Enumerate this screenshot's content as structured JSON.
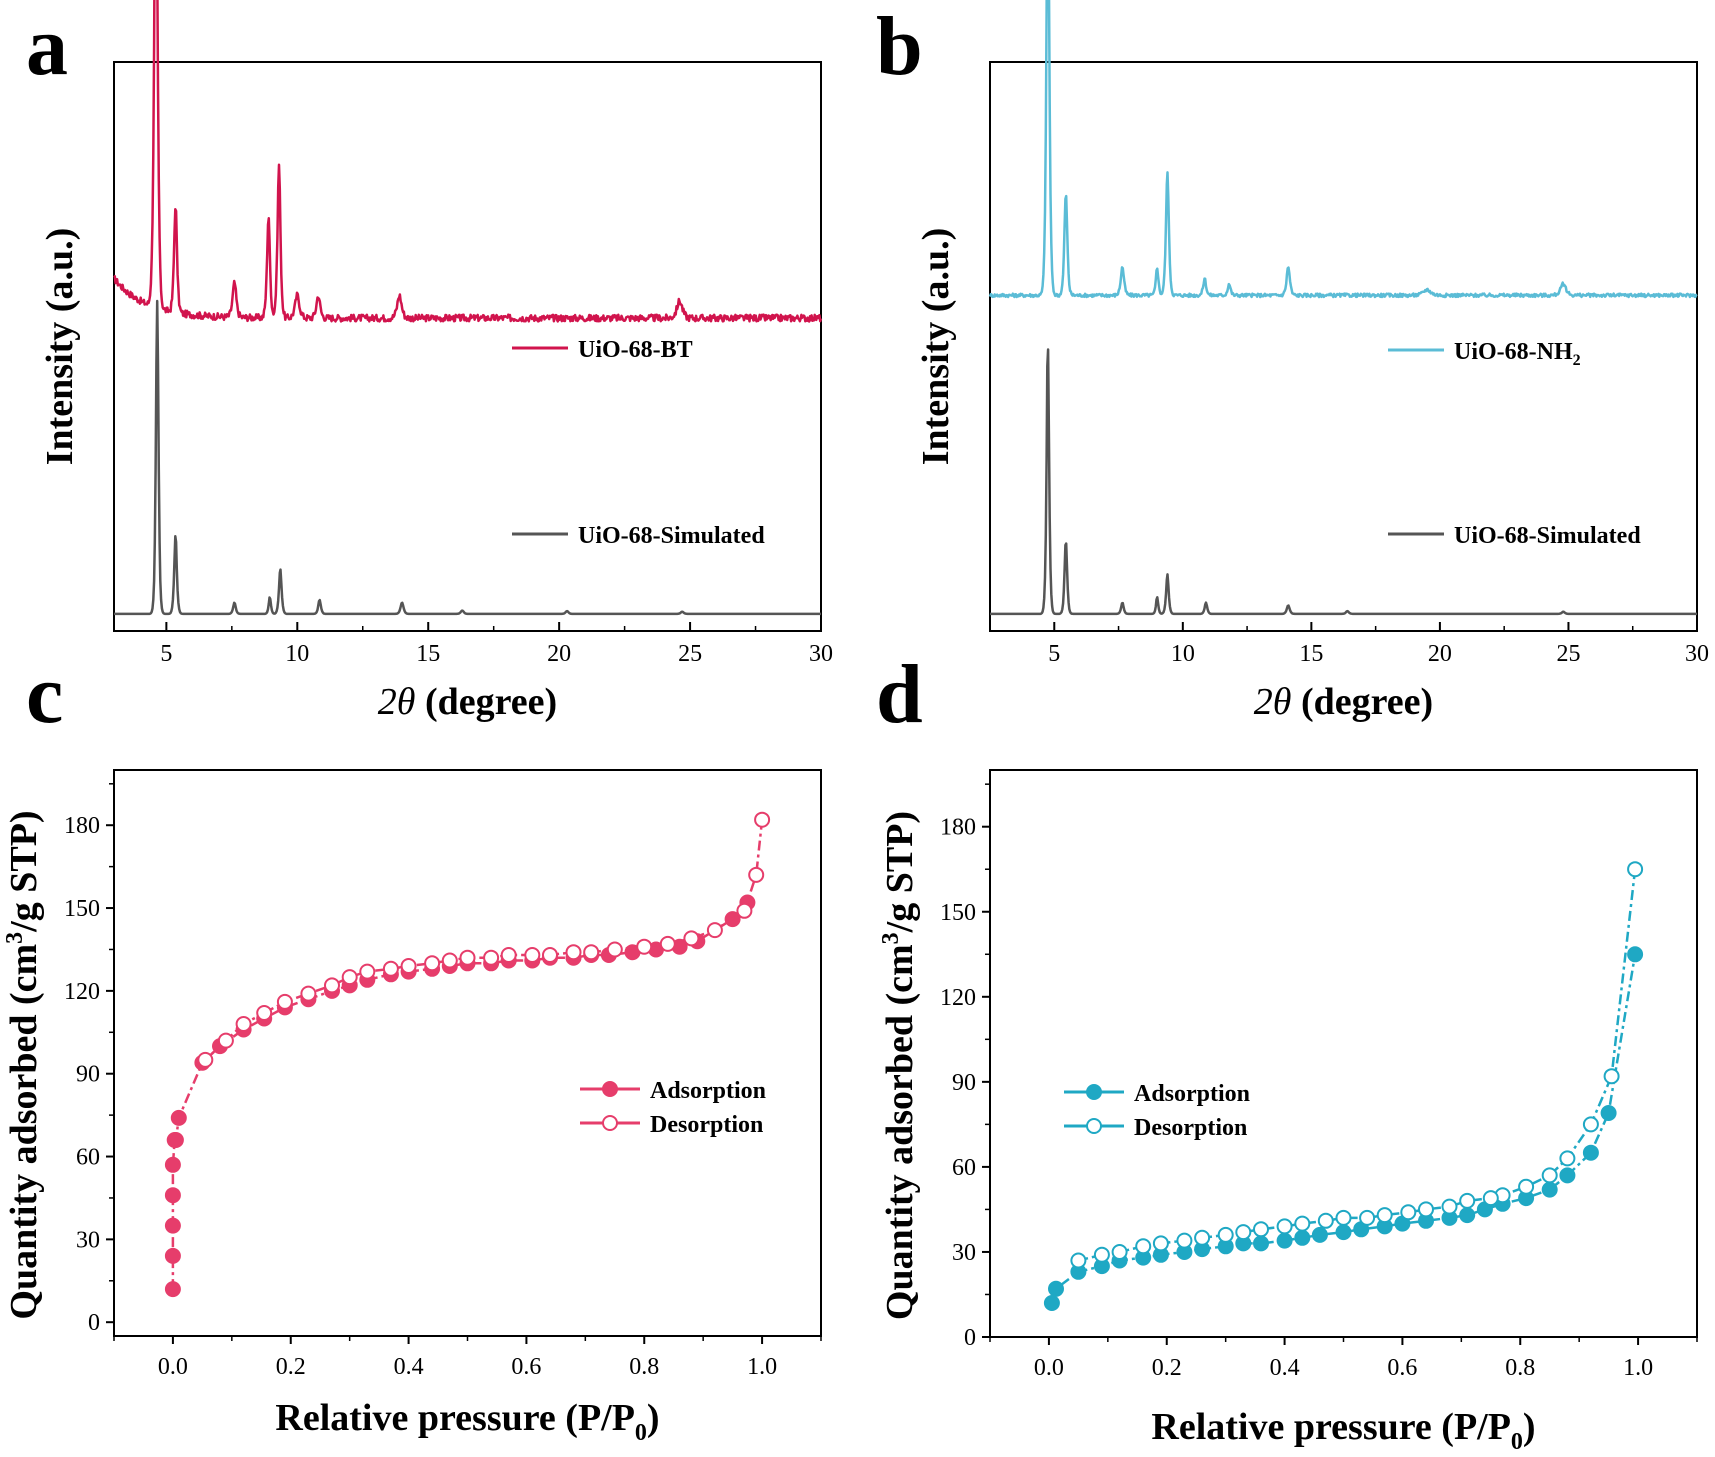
{
  "chart_data": [
    {
      "panel": "a",
      "type": "line",
      "xlabel": "2θ (degree)",
      "xlabel_parts": {
        "symbol": "2θ",
        "unit": "(degree)"
      },
      "ylabel": "Intensity (a.u.)",
      "xlim": [
        3,
        30
      ],
      "xticks": [
        5,
        10,
        15,
        20,
        25,
        30
      ],
      "yticks": [],
      "legend_position": "inline-right",
      "series": [
        {
          "name": "UiO-68-BT",
          "color": "#d1144d",
          "baseline": 0.55,
          "noise": 0.006,
          "start_level": 0.62,
          "peaks": [
            [
              4.6,
              0.88,
              0.09
            ],
            [
              5.35,
              0.19,
              0.08
            ],
            [
              7.6,
              0.06,
              0.1
            ],
            [
              8.9,
              0.18,
              0.08
            ],
            [
              9.3,
              0.27,
              0.08
            ],
            [
              10.0,
              0.04,
              0.12
            ],
            [
              10.8,
              0.04,
              0.1
            ],
            [
              13.9,
              0.04,
              0.12
            ],
            [
              24.6,
              0.03,
              0.15
            ]
          ]
        },
        {
          "name": "UiO-68-Simulated",
          "color": "#555555",
          "baseline": 0.03,
          "noise": 0.0,
          "start_level": 0.03,
          "peaks": [
            [
              4.65,
              0.55,
              0.07
            ],
            [
              5.35,
              0.14,
              0.07
            ],
            [
              7.6,
              0.02,
              0.07
            ],
            [
              8.95,
              0.03,
              0.06
            ],
            [
              9.35,
              0.08,
              0.07
            ],
            [
              10.85,
              0.025,
              0.07
            ],
            [
              14.0,
              0.02,
              0.08
            ],
            [
              16.3,
              0.006,
              0.08
            ],
            [
              20.3,
              0.005,
              0.08
            ],
            [
              24.7,
              0.004,
              0.08
            ]
          ]
        }
      ]
    },
    {
      "panel": "b",
      "type": "line",
      "xlabel": "2θ (degree)",
      "xlabel_parts": {
        "symbol": "2θ",
        "unit": "(degree)"
      },
      "ylabel": "Intensity (a.u.)",
      "xlim": [
        2.5,
        30
      ],
      "xticks": [
        5,
        10,
        15,
        20,
        25,
        30
      ],
      "yticks": [],
      "legend_position": "inline-right",
      "series": [
        {
          "name": "UiO-68-NH₂",
          "name_parts": {
            "base": "UiO-68-NH",
            "sub": "2"
          },
          "color": "#5bbcd6",
          "baseline": 0.59,
          "noise": 0.003,
          "start_level": 0.59,
          "peaks": [
            [
              4.75,
              0.78,
              0.08
            ],
            [
              5.45,
              0.18,
              0.08
            ],
            [
              7.65,
              0.05,
              0.09
            ],
            [
              9.0,
              0.05,
              0.07
            ],
            [
              9.4,
              0.22,
              0.08
            ],
            [
              10.85,
              0.03,
              0.08
            ],
            [
              11.8,
              0.02,
              0.08
            ],
            [
              14.1,
              0.05,
              0.09
            ],
            [
              19.5,
              0.01,
              0.2
            ],
            [
              24.8,
              0.02,
              0.15
            ]
          ]
        },
        {
          "name": "UiO-68-Simulated",
          "color": "#555555",
          "baseline": 0.03,
          "noise": 0.0,
          "start_level": 0.03,
          "peaks": [
            [
              4.75,
              0.48,
              0.07
            ],
            [
              5.45,
              0.13,
              0.07
            ],
            [
              7.65,
              0.02,
              0.07
            ],
            [
              9.0,
              0.03,
              0.06
            ],
            [
              9.4,
              0.07,
              0.07
            ],
            [
              10.9,
              0.02,
              0.07
            ],
            [
              14.1,
              0.015,
              0.08
            ],
            [
              16.4,
              0.005,
              0.08
            ],
            [
              24.8,
              0.004,
              0.08
            ]
          ]
        }
      ]
    },
    {
      "panel": "c",
      "type": "scatter",
      "xlabel": "Relative pressure (P/P0)",
      "xlabel_parts": {
        "base": "Relative pressure (P/P",
        "sub": "0",
        "end": ")"
      },
      "ylabel": "Quantity adsorbed (cm3/g STP)",
      "ylabel_parts": {
        "base": "Quantity adsorbed (cm",
        "sup": "3",
        "end": "/g STP)"
      },
      "xlim": [
        -0.1,
        1.1
      ],
      "ylim": [
        -5,
        200
      ],
      "xticks": [
        0.0,
        0.2,
        0.4,
        0.6,
        0.8,
        1.0
      ],
      "xtick_labels": [
        "0.0",
        "0.2",
        "0.4",
        "0.6",
        "0.8",
        "1.0"
      ],
      "yticks": [
        0,
        30,
        60,
        90,
        120,
        150,
        180
      ],
      "legend_position": "center-right",
      "color": "#e63d6b",
      "series": [
        {
          "name": "Adsorption",
          "marker": "filled",
          "x": [
            0.0,
            0.0,
            0.0,
            0.0,
            0.0,
            0.003,
            0.005,
            0.01,
            0.05,
            0.08,
            0.12,
            0.155,
            0.19,
            0.23,
            0.27,
            0.3,
            0.33,
            0.37,
            0.4,
            0.44,
            0.47,
            0.5,
            0.54,
            0.57,
            0.61,
            0.64,
            0.68,
            0.71,
            0.74,
            0.78,
            0.82,
            0.86,
            0.89,
            0.95,
            0.975
          ],
          "y": [
            12,
            24,
            35,
            46,
            57,
            66,
            66,
            74,
            94,
            100,
            106,
            110,
            114,
            117,
            120,
            122,
            124,
            126,
            127,
            128,
            129,
            130,
            130,
            131,
            131,
            132,
            132,
            133,
            133,
            134,
            135,
            136,
            138,
            146,
            152
          ]
        },
        {
          "name": "Desorption",
          "marker": "open",
          "x": [
            1.0,
            0.99,
            0.97,
            0.92,
            0.88,
            0.84,
            0.8,
            0.75,
            0.71,
            0.68,
            0.64,
            0.61,
            0.57,
            0.54,
            0.5,
            0.47,
            0.44,
            0.4,
            0.37,
            0.33,
            0.3,
            0.27,
            0.23,
            0.19,
            0.155,
            0.12,
            0.09,
            0.055
          ],
          "y": [
            182,
            162,
            149,
            142,
            139,
            137,
            136,
            135,
            134,
            134,
            133,
            133,
            133,
            132,
            132,
            131,
            130,
            129,
            128,
            127,
            125,
            122,
            119,
            116,
            112,
            108,
            102,
            95
          ]
        }
      ]
    },
    {
      "panel": "d",
      "type": "scatter",
      "xlabel": "Relative pressure (P/P0)",
      "xlabel_parts": {
        "base": "Relative pressure (P/P",
        "sub": "0",
        "end": ")"
      },
      "ylabel": "Quantity adsorbed (cm3/g STP)",
      "ylabel_parts": {
        "base": "Quantity adsorbed (cm",
        "sup": "3",
        "end": "/g STP)"
      },
      "xlim": [
        -0.1,
        1.1
      ],
      "ylim": [
        0,
        200
      ],
      "xticks": [
        0.0,
        0.2,
        0.4,
        0.6,
        0.8,
        1.0
      ],
      "xtick_labels": [
        "0.0",
        "0.2",
        "0.4",
        "0.6",
        "0.8",
        "1.0"
      ],
      "yticks": [
        0,
        30,
        60,
        90,
        120,
        150,
        180
      ],
      "legend_position": "center-left",
      "color": "#1fa8c4",
      "series": [
        {
          "name": "Adsorption",
          "marker": "filled",
          "x": [
            0.005,
            0.012,
            0.05,
            0.09,
            0.12,
            0.16,
            0.19,
            0.23,
            0.26,
            0.3,
            0.33,
            0.36,
            0.4,
            0.43,
            0.46,
            0.5,
            0.53,
            0.57,
            0.6,
            0.64,
            0.68,
            0.71,
            0.74,
            0.77,
            0.81,
            0.85,
            0.88,
            0.92,
            0.95,
            0.995
          ],
          "y": [
            12,
            17,
            23,
            25,
            27,
            28,
            29,
            30,
            31,
            32,
            33,
            33,
            34,
            35,
            36,
            37,
            38,
            39,
            40,
            41,
            42,
            43,
            45,
            47,
            49,
            52,
            57,
            65,
            79,
            135
          ]
        },
        {
          "name": "Desorption",
          "marker": "open",
          "x": [
            0.995,
            0.955,
            0.92,
            0.88,
            0.85,
            0.81,
            0.77,
            0.75,
            0.71,
            0.68,
            0.64,
            0.61,
            0.57,
            0.54,
            0.5,
            0.47,
            0.43,
            0.4,
            0.36,
            0.33,
            0.3,
            0.26,
            0.23,
            0.19,
            0.16,
            0.12,
            0.09,
            0.05
          ],
          "y": [
            165,
            92,
            75,
            63,
            57,
            53,
            50,
            49,
            48,
            46,
            45,
            44,
            43,
            42,
            42,
            41,
            40,
            39,
            38,
            37,
            36,
            35,
            34,
            33,
            32,
            30,
            29,
            27
          ]
        }
      ]
    }
  ]
}
